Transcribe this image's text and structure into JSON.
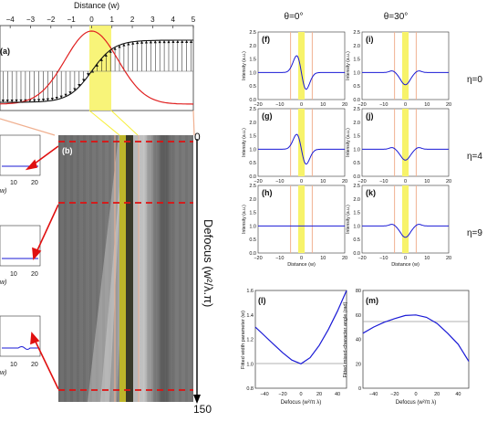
{
  "panel_a": {
    "label": "(a)",
    "xlabel": "Distance (w)",
    "ticks": [
      "−4",
      "−3",
      "−2",
      "−1",
      "0",
      "1",
      "2",
      "3",
      "4",
      "5"
    ]
  },
  "panel_b": {
    "label": "(b)",
    "axis_label": "Defocus (w²/λ.π)",
    "top_value": "0",
    "bottom_value": "150"
  },
  "left_insets": {
    "tick_labels": [
      "10",
      "20"
    ],
    "axis_fragment": "w)"
  },
  "small_panels": {
    "column_titles": [
      "θ=0°",
      "θ=30°"
    ],
    "row_labels": [
      "η=0",
      "η=4",
      "η=9"
    ],
    "ylabel": "Intensity (a.u.)",
    "xlabel": "Distance (w)",
    "yticks": [
      "0.0",
      "0.5",
      "1.0",
      "1.5",
      "2.0",
      "2.5"
    ],
    "xticks": [
      "−20",
      "−10",
      "0",
      "10",
      "20"
    ],
    "panels": [
      "(f)",
      "(i)",
      "(g)",
      "(j)",
      "(h)",
      "(k)"
    ]
  },
  "panel_l": {
    "label": "(l)",
    "ylabel": "Fitted width parameter (w)",
    "xlabel": "Defocus (w²/π λ)",
    "yticks": [
      "0.8",
      "1.0",
      "1.2",
      "1.4",
      "1.6"
    ],
    "xticks": [
      "−40",
      "−20",
      "0",
      "20",
      "40"
    ]
  },
  "panel_m": {
    "label": "(m)",
    "ylabel": "Fitted mixed-character angle (rad)",
    "xlabel": "Defocus (w²/π λ)",
    "yticks": [
      "0",
      "20",
      "40",
      "60",
      "80"
    ],
    "xticks": [
      "−40",
      "−20",
      "0",
      "20",
      "40"
    ]
  },
  "chart_data": [
    {
      "type": "line",
      "panel": "(l)",
      "x": [
        -50,
        -40,
        -30,
        -20,
        -10,
        0,
        10,
        20,
        30,
        40,
        50
      ],
      "y": [
        1.3,
        1.23,
        1.16,
        1.09,
        1.03,
        1.0,
        1.05,
        1.15,
        1.28,
        1.43,
        1.6
      ],
      "ylim": [
        0.8,
        1.6
      ],
      "xlim": [
        -50,
        50
      ]
    },
    {
      "type": "line",
      "panel": "(m)",
      "x": [
        -50,
        -40,
        -30,
        -20,
        -10,
        0,
        10,
        20,
        30,
        40,
        50
      ],
      "y": [
        45,
        50,
        54,
        57,
        59.5,
        60,
        58,
        53,
        45,
        36,
        22
      ],
      "ylim": [
        0,
        80
      ],
      "xlim": [
        -50,
        50
      ]
    }
  ],
  "colors": {
    "curve": "#1a1ad6",
    "gauss": "#e02020",
    "highlight": "#f7f36a",
    "edge": "#f0b090",
    "dash": "#e01010"
  }
}
